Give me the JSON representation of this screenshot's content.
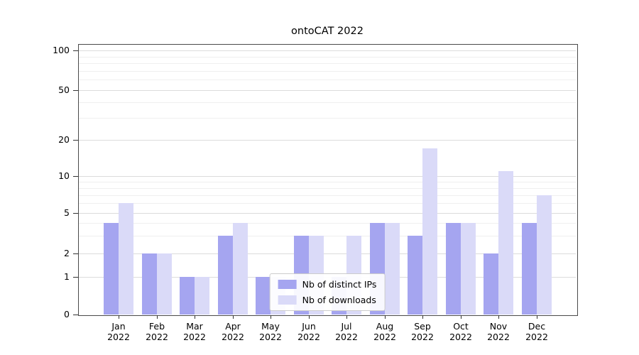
{
  "chart_data": {
    "type": "bar",
    "title": "ontoCAT 2022",
    "categories": [
      "Jan",
      "Feb",
      "Mar",
      "Apr",
      "May",
      "Jun",
      "Jul",
      "Aug",
      "Sep",
      "Oct",
      "Nov",
      "Dec"
    ],
    "year_label": "2022",
    "series": [
      {
        "name": "Nb of distinct IPs",
        "color": "#a5a5f0",
        "values": [
          4,
          2,
          1,
          3,
          1,
          3,
          1,
          4,
          3,
          4,
          2,
          4
        ]
      },
      {
        "name": "Nb of downloads",
        "color": "#dadaf8",
        "values": [
          6,
          2,
          1,
          4,
          1,
          3,
          3,
          4,
          17,
          4,
          11,
          7
        ]
      }
    ],
    "y_ticks": [
      0,
      1,
      2,
      5,
      10,
      20,
      50,
      100
    ],
    "y_scale": "symlog",
    "ylim": [
      0,
      100
    ],
    "grid": true,
    "legend_position": "lower center"
  }
}
